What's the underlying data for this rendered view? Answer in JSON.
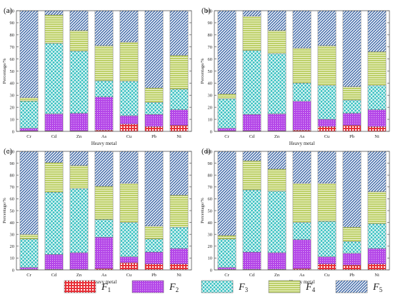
{
  "colors": {
    "F1": "#e8323a",
    "F2": "#b447e8",
    "F3": "#33bfbf",
    "F4": "#b8cc5e",
    "F5": "#3e68a8",
    "axis": "#555555"
  },
  "legend": [
    {
      "key": "F1",
      "base": "F",
      "sub": "1"
    },
    {
      "key": "F2",
      "base": "F",
      "sub": "2"
    },
    {
      "key": "F3",
      "base": "F",
      "sub": "3"
    },
    {
      "key": "F4",
      "base": "F",
      "sub": "4"
    },
    {
      "key": "F5",
      "base": "F",
      "sub": "5"
    }
  ],
  "chart_data": [
    {
      "type": "bar",
      "stacked": true,
      "panel_label": "(a)",
      "categories": [
        "Cr",
        "Cd",
        "Zn",
        "As",
        "Cu",
        "Pb",
        "Ni"
      ],
      "xlabel": "Heavy metal",
      "ylabel": "Percentage/%",
      "ylim": [
        0,
        100
      ],
      "yticks": [
        0,
        10,
        20,
        30,
        40,
        50,
        60,
        70,
        80,
        90,
        100
      ],
      "series": [
        {
          "key": "F1",
          "values": [
            0.5,
            0.5,
            0.5,
            1,
            6,
            4,
            5
          ]
        },
        {
          "key": "F2",
          "values": [
            2,
            14,
            14.5,
            27.5,
            7,
            10,
            13
          ]
        },
        {
          "key": "F3",
          "values": [
            22.5,
            58.5,
            51.5,
            13.5,
            28.5,
            10,
            17
          ]
        },
        {
          "key": "F4",
          "values": [
            3,
            23.5,
            17,
            29,
            32.5,
            12,
            28
          ]
        },
        {
          "key": "F5",
          "values": [
            72,
            3.5,
            16.5,
            29,
            26,
            64,
            37
          ]
        }
      ]
    },
    {
      "type": "bar",
      "stacked": true,
      "panel_label": "(b)",
      "categories": [
        "Cr",
        "Cd",
        "Zn",
        "As",
        "Cu",
        "Pb",
        "Ni"
      ],
      "xlabel": "Heavy metal",
      "ylabel": "Percentage/%",
      "ylim": [
        0,
        100
      ],
      "yticks": [
        0,
        10,
        20,
        30,
        40,
        50,
        60,
        70,
        80,
        90,
        100
      ],
      "series": [
        {
          "key": "F1",
          "values": [
            0.5,
            0.5,
            0.5,
            1,
            4,
            5,
            4
          ]
        },
        {
          "key": "F2",
          "values": [
            2,
            13.5,
            14,
            24,
            6,
            10,
            14
          ]
        },
        {
          "key": "F3",
          "values": [
            24.5,
            53,
            50,
            15,
            28,
            11,
            20
          ]
        },
        {
          "key": "F4",
          "values": [
            4,
            28.5,
            19,
            29,
            33,
            11,
            28
          ]
        },
        {
          "key": "F5",
          "values": [
            69,
            4.5,
            16.5,
            31,
            29,
            63,
            34
          ]
        }
      ]
    },
    {
      "type": "bar",
      "stacked": true,
      "panel_label": "(c)",
      "categories": [
        "Cr",
        "Cd",
        "Zn",
        "As",
        "Cu",
        "Pb",
        "Ni"
      ],
      "xlabel": "Heavy metal",
      "ylabel": "Percentage/%",
      "ylim": [
        0,
        100
      ],
      "yticks": [
        0,
        10,
        20,
        30,
        40,
        50,
        60,
        70,
        80,
        90,
        100
      ],
      "series": [
        {
          "key": "F1",
          "values": [
            0.5,
            0.5,
            0.5,
            1,
            6,
            5,
            5
          ]
        },
        {
          "key": "F2",
          "values": [
            1.5,
            12.5,
            14,
            26.5,
            5,
            10,
            13
          ]
        },
        {
          "key": "F3",
          "values": [
            24,
            52.5,
            54,
            15,
            29,
            11,
            18
          ]
        },
        {
          "key": "F4",
          "values": [
            4,
            25,
            19.5,
            28,
            33,
            11,
            27
          ]
        },
        {
          "key": "F5",
          "values": [
            70,
            9.5,
            12,
            29.5,
            27,
            63,
            37
          ]
        }
      ]
    },
    {
      "type": "bar",
      "stacked": true,
      "panel_label": "(d)",
      "categories": [
        "Cr",
        "Cd",
        "Zn",
        "As",
        "Cu",
        "Pb",
        "Ni"
      ],
      "xlabel": "Heavy metal",
      "ylabel": "Percentage/%",
      "ylim": [
        0,
        100
      ],
      "yticks": [
        0,
        10,
        20,
        30,
        40,
        50,
        60,
        70,
        80,
        90,
        100
      ],
      "series": [
        {
          "key": "F1",
          "values": [
            0.5,
            0.5,
            0.5,
            1,
            5,
            4,
            5
          ]
        },
        {
          "key": "F2",
          "values": [
            1.5,
            14.5,
            14,
            24.5,
            6,
            10,
            13
          ]
        },
        {
          "key": "F3",
          "values": [
            24,
            52.5,
            52,
            14.5,
            30,
            10,
            21
          ]
        },
        {
          "key": "F4",
          "values": [
            3,
            24.5,
            18.5,
            33,
            32,
            12,
            27
          ]
        },
        {
          "key": "F5",
          "values": [
            71,
            8,
            15,
            27,
            27,
            64,
            34
          ]
        }
      ]
    }
  ]
}
